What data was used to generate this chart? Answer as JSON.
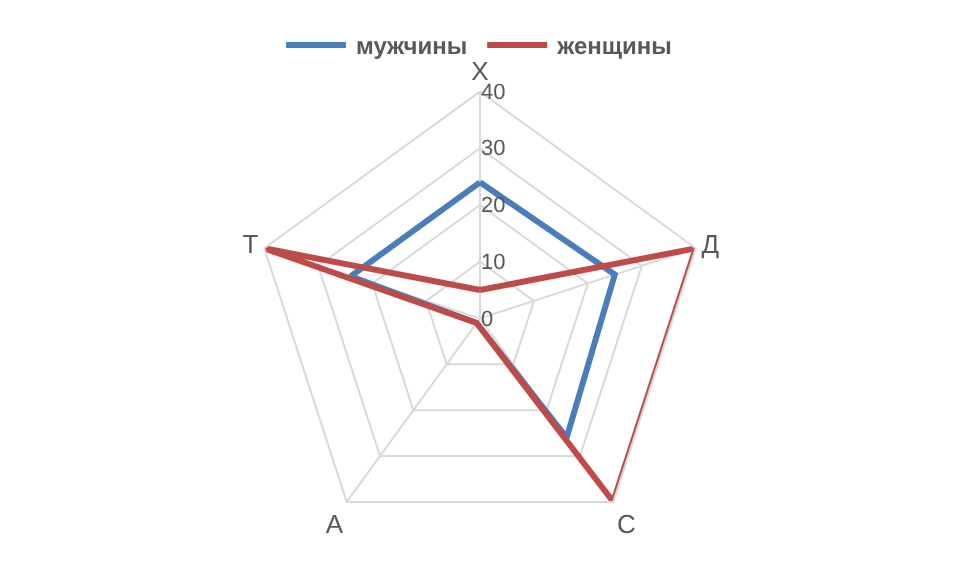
{
  "chart_data": {
    "type": "radar",
    "categories": [
      "Х",
      "Д",
      "С",
      "А",
      "Т"
    ],
    "series": [
      {
        "name": "мужчины",
        "color": "#4a7ebb",
        "values": [
          24,
          25,
          26,
          1,
          24
        ]
      },
      {
        "name": "женщины",
        "color": "#be4b48",
        "values": [
          5,
          40,
          40,
          1,
          40
        ]
      }
    ],
    "ylim": [
      0,
      40
    ],
    "yticks": [
      0,
      10,
      20,
      30,
      40
    ],
    "grid": true,
    "legend": "top",
    "marker": "none"
  }
}
